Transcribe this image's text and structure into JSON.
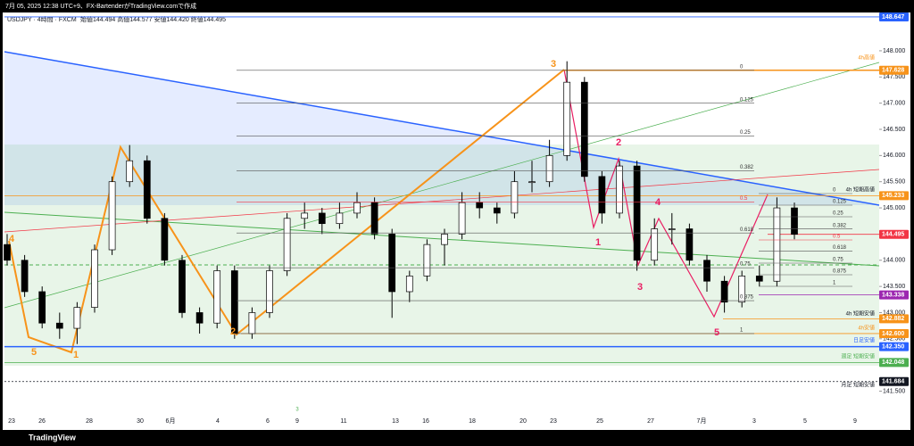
{
  "header": {
    "created": "7月 05, 2025 12:38 UTC+9、FX-BartenderがTradingView.comで作成",
    "symbol": "USDJPY · 4時間 · FXCM",
    "ohlc": "始値144.494  高値144.577  安値144.420  終値144.495"
  },
  "footer": {
    "brand": "TradingView"
  },
  "chart_data": {
    "type": "candlestick",
    "ylim": [
      141.1,
      148.97
    ],
    "yticks": [
      {
        "value": 148,
        "label": "148.000"
      },
      {
        "value": 147.5,
        "label": "147.500"
      },
      {
        "value": 147,
        "label": "147.000"
      },
      {
        "value": 146.5,
        "label": "146.500"
      },
      {
        "value": 146,
        "label": "146.000"
      },
      {
        "value": 145.5,
        "label": "145.500"
      },
      {
        "value": 145,
        "label": "145.000"
      },
      {
        "value": 144,
        "label": "144.000"
      },
      {
        "value": 143.5,
        "label": "143.500"
      },
      {
        "value": 143,
        "label": "143.000"
      },
      {
        "value": 142.5,
        "label": "142.500"
      },
      {
        "value": 141.5,
        "label": "141.500"
      }
    ],
    "price_tags": [
      {
        "value": 148.647,
        "label": "148.647",
        "color": "#2962ff"
      },
      {
        "value": 147.628,
        "label": "147.628",
        "color": "#f7931a"
      },
      {
        "value": 145.233,
        "label": "145.233",
        "color": "#f7931a"
      },
      {
        "value": 144.495,
        "label": "144.495",
        "color": "#f23645"
      },
      {
        "value": 143.338,
        "label": "143.338",
        "color": "#9c27b0"
      },
      {
        "value": 142.882,
        "label": "142.882",
        "color": "#f7931a"
      },
      {
        "value": 142.6,
        "label": "142.600",
        "color": "#f7931a"
      },
      {
        "value": 142.35,
        "label": "142.350",
        "color": "#2962ff"
      },
      {
        "value": 142.048,
        "label": "142.048",
        "color": "#4caf50"
      },
      {
        "value": 141.684,
        "label": "141.684",
        "color": "#131722"
      }
    ],
    "level_notes": [
      "4h高値",
      "4h 短期高値",
      "4h 短期安値",
      "4h安値",
      "日足安値",
      "週足 短期安値",
      "月足 短期安値"
    ],
    "x_labels": [
      "23",
      "26",
      "28",
      "30",
      "6月",
      "4",
      "6",
      "9",
      "11",
      "13",
      "16",
      "18",
      "20",
      "23",
      "25",
      "27",
      "7月",
      "3",
      "5",
      "9"
    ],
    "x_marker": "3",
    "fib_left": [
      0,
      0.125,
      0.25,
      0.382,
      0.5,
      0.618,
      0.75,
      0.875,
      1
    ],
    "fib_right": [
      0,
      0.125,
      0.25,
      0.382,
      0.5,
      0.618,
      0.75,
      0.875,
      1
    ],
    "wave_orange": [
      "4",
      "5",
      "1",
      "2",
      "3"
    ],
    "wave_pink": [
      "1",
      "2",
      "3",
      "4",
      "5"
    ],
    "candles": [
      [
        144.3,
        144.5,
        143.9,
        144.0
      ],
      [
        144.0,
        144.1,
        143.3,
        143.4
      ],
      [
        143.4,
        143.5,
        142.7,
        142.8
      ],
      [
        142.8,
        143.0,
        142.5,
        142.7
      ],
      [
        142.7,
        143.2,
        142.4,
        143.1
      ],
      [
        143.1,
        144.3,
        143.0,
        144.2
      ],
      [
        144.2,
        145.6,
        144.1,
        145.5
      ],
      [
        145.5,
        146.2,
        145.4,
        145.9
      ],
      [
        145.9,
        146.0,
        144.7,
        144.8
      ],
      [
        144.8,
        144.9,
        143.9,
        144.0
      ],
      [
        144.0,
        144.1,
        142.9,
        143.0
      ],
      [
        143.0,
        143.1,
        142.6,
        142.8
      ],
      [
        142.8,
        143.9,
        142.7,
        143.8
      ],
      [
        143.8,
        143.9,
        142.5,
        142.6
      ],
      [
        142.6,
        143.1,
        142.5,
        143.0
      ],
      [
        143.0,
        143.9,
        142.9,
        143.8
      ],
      [
        143.8,
        144.9,
        143.7,
        144.8
      ],
      [
        144.8,
        145.1,
        144.6,
        144.9
      ],
      [
        144.9,
        145.0,
        144.5,
        144.7
      ],
      [
        144.7,
        145.1,
        144.6,
        144.9
      ],
      [
        144.9,
        145.3,
        144.8,
        145.1
      ],
      [
        145.1,
        145.2,
        144.4,
        144.5
      ],
      [
        144.5,
        144.6,
        142.9,
        143.4
      ],
      [
        143.4,
        143.8,
        143.2,
        143.7
      ],
      [
        143.7,
        144.4,
        143.6,
        144.3
      ],
      [
        144.3,
        144.6,
        143.9,
        144.5
      ],
      [
        144.5,
        145.3,
        144.4,
        145.1
      ],
      [
        145.1,
        145.3,
        144.8,
        145.0
      ],
      [
        145.0,
        145.1,
        144.7,
        144.9
      ],
      [
        144.9,
        145.7,
        144.8,
        145.5
      ],
      [
        145.5,
        145.9,
        145.3,
        145.5
      ],
      [
        145.5,
        146.3,
        145.4,
        146.0
      ],
      [
        146.0,
        147.8,
        145.9,
        147.4
      ],
      [
        147.4,
        147.5,
        145.5,
        145.6
      ],
      [
        145.6,
        145.7,
        144.7,
        144.9
      ],
      [
        144.9,
        145.9,
        144.8,
        145.8
      ],
      [
        145.8,
        145.9,
        143.8,
        144.0
      ],
      [
        144.0,
        144.8,
        143.9,
        144.6
      ],
      [
        144.6,
        144.9,
        144.3,
        144.6
      ],
      [
        144.6,
        144.7,
        143.9,
        144.0
      ],
      [
        144.0,
        144.1,
        143.4,
        143.6
      ],
      [
        143.6,
        143.7,
        143.0,
        143.2
      ],
      [
        143.2,
        143.8,
        143.1,
        143.7
      ],
      [
        143.7,
        143.9,
        143.5,
        143.6
      ],
      [
        143.6,
        145.2,
        143.5,
        145.0
      ],
      [
        145.0,
        145.1,
        144.4,
        144.495
      ]
    ]
  }
}
